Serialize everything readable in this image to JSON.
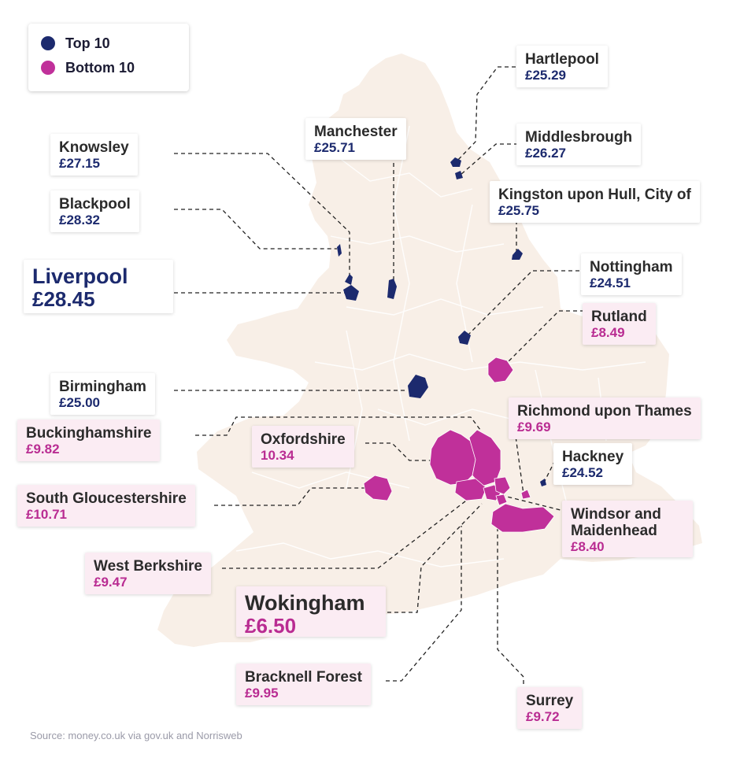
{
  "legend": {
    "top_label": "Top 10",
    "bottom_label": "Bottom 10",
    "top_color": "#1c2a6e",
    "bottom_color": "#c0309a"
  },
  "colors": {
    "land": "#f8efe7",
    "border": "#ffffff"
  },
  "labels": {
    "hartlepool": {
      "name": "Hartlepool",
      "value": "£25.29"
    },
    "knowsley": {
      "name": "Knowsley",
      "value": "£27.15"
    },
    "manchester": {
      "name": "Manchester",
      "value": "£25.71"
    },
    "middlesbrough": {
      "name": "Middlesbrough",
      "value": "£26.27"
    },
    "blackpool": {
      "name": "Blackpool",
      "value": "£28.32"
    },
    "hull": {
      "name": "Kingston upon Hull, City of",
      "value": "£25.75"
    },
    "liverpool": {
      "name": "Liverpool",
      "value": "£28.45"
    },
    "nottingham": {
      "name": "Nottingham",
      "value": "£24.51"
    },
    "rutland": {
      "name": "Rutland",
      "value": "£8.49"
    },
    "birmingham": {
      "name": "Birmingham",
      "value": "£25.00"
    },
    "richmond": {
      "name": "Richmond upon Thames",
      "value": "£9.69"
    },
    "buckinghamshire": {
      "name": "Buckinghamshire",
      "value": "£9.82"
    },
    "oxfordshire": {
      "name": "Oxfordshire",
      "value": "10.34"
    },
    "hackney": {
      "name": "Hackney",
      "value": "£24.52"
    },
    "south_glos": {
      "name": "South Gloucestershire",
      "value": "£10.71"
    },
    "windsor": {
      "name": "Windsor and Maidenhead",
      "value": "£8.40"
    },
    "west_berks": {
      "name": "West Berkshire",
      "value": "£9.47"
    },
    "wokingham": {
      "name": "Wokingham",
      "value": "£6.50"
    },
    "bracknell": {
      "name": "Bracknell Forest",
      "value": "£9.95"
    },
    "surrey": {
      "name": "Surrey",
      "value": "£9.72"
    }
  },
  "source": "Source: money.co.uk via gov.uk and Norrisweb"
}
